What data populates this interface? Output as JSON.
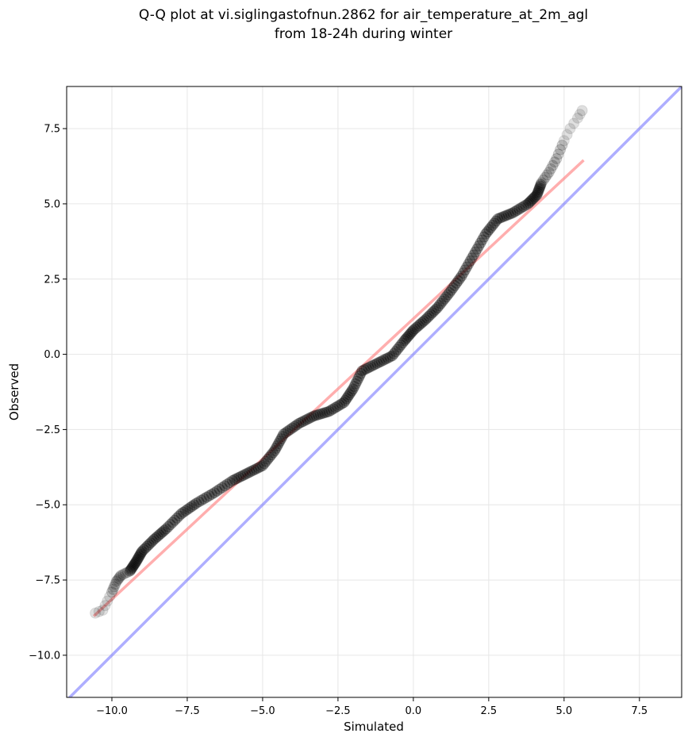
{
  "chart_data": {
    "type": "scatter",
    "title_lines": [
      "Q-Q plot at vi.siglingastofnun.2862 for air_temperature_at_2m_agl",
      "from 18-24h during winter"
    ],
    "xlabel": "Simulated",
    "ylabel": "Observed",
    "xlim": [
      -11.5,
      8.9
    ],
    "ylim": [
      -11.4,
      8.9
    ],
    "x_ticks": [
      -10.0,
      -7.5,
      -5.0,
      -2.5,
      0.0,
      2.5,
      5.0,
      7.5
    ],
    "x_tick_labels": [
      "−10.0",
      "−7.5",
      "−5.0",
      "−2.5",
      "0.0",
      "2.5",
      "5.0",
      "7.5"
    ],
    "y_ticks": [
      -10.0,
      -7.5,
      -5.0,
      -2.5,
      0.0,
      2.5,
      5.0,
      7.5
    ],
    "y_tick_labels": [
      "−10.0",
      "−7.5",
      "−5.0",
      "−2.5",
      "0.0",
      "2.5",
      "5.0",
      "7.5"
    ],
    "grid": true,
    "colors": {
      "points": "#000000",
      "fit_line": "#ff6b6b",
      "identity_line": "#6b6bff",
      "grid": "#e6e6e6"
    },
    "quantile_curve": [
      [
        -10.55,
        -8.6
      ],
      [
        -10.3,
        -8.5
      ],
      [
        -10.15,
        -8.2
      ],
      [
        -10.0,
        -7.9
      ],
      [
        -9.85,
        -7.55
      ],
      [
        -9.7,
        -7.35
      ],
      [
        -9.4,
        -7.2
      ],
      [
        -9.2,
        -6.9
      ],
      [
        -9.0,
        -6.55
      ],
      [
        -8.6,
        -6.15
      ],
      [
        -8.2,
        -5.8
      ],
      [
        -7.7,
        -5.3
      ],
      [
        -7.2,
        -4.95
      ],
      [
        -6.6,
        -4.6
      ],
      [
        -6.0,
        -4.2
      ],
      [
        -5.5,
        -3.95
      ],
      [
        -5.0,
        -3.7
      ],
      [
        -4.6,
        -3.2
      ],
      [
        -4.3,
        -2.65
      ],
      [
        -3.8,
        -2.3
      ],
      [
        -3.3,
        -2.05
      ],
      [
        -2.8,
        -1.9
      ],
      [
        -2.3,
        -1.6
      ],
      [
        -2.0,
        -1.15
      ],
      [
        -1.7,
        -0.55
      ],
      [
        -1.2,
        -0.3
      ],
      [
        -0.7,
        -0.05
      ],
      [
        -0.3,
        0.45
      ],
      [
        0.0,
        0.8
      ],
      [
        0.4,
        1.15
      ],
      [
        0.8,
        1.55
      ],
      [
        1.2,
        2.05
      ],
      [
        1.6,
        2.6
      ],
      [
        2.0,
        3.3
      ],
      [
        2.4,
        4.0
      ],
      [
        2.8,
        4.5
      ],
      [
        3.3,
        4.7
      ],
      [
        3.8,
        5.0
      ],
      [
        4.1,
        5.3
      ],
      [
        4.25,
        5.7
      ],
      [
        4.5,
        6.05
      ],
      [
        4.75,
        6.5
      ],
      [
        5.0,
        7.1
      ],
      [
        5.2,
        7.5
      ],
      [
        5.45,
        7.85
      ],
      [
        5.6,
        8.1
      ]
    ],
    "fit_line": {
      "x": [
        -10.6,
        5.65
      ],
      "y": [
        -8.7,
        6.45
      ]
    },
    "identity_line": {
      "x": [
        -11.5,
        8.9
      ],
      "y": [
        -11.5,
        8.9
      ]
    }
  }
}
